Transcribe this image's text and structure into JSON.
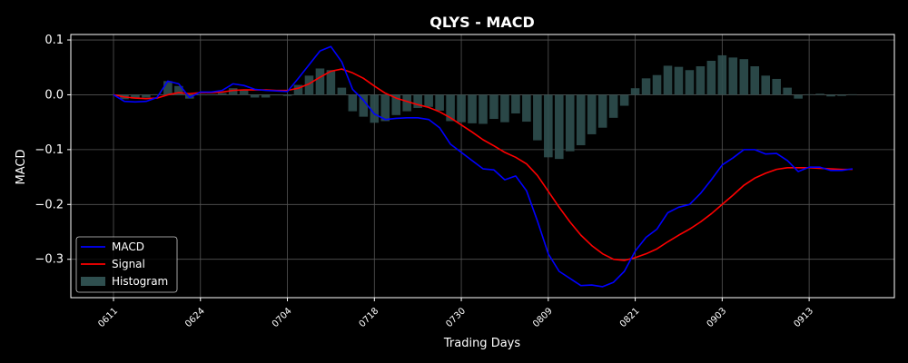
{
  "chart_data": {
    "type": "line",
    "title": "QLYS - MACD",
    "xlabel": "Trading Days",
    "ylabel": "MACD",
    "ylim": [
      -0.37,
      0.11
    ],
    "yticks": [
      0.1,
      0.0,
      -0.1,
      -0.2,
      -0.3
    ],
    "ytick_labels": [
      "0.1",
      "0.0",
      "−0.1",
      "−0.2",
      "−0.3"
    ],
    "xtick_labels": [
      "0611",
      "0624",
      "0704",
      "0718",
      "0730",
      "0809",
      "0821",
      "0903",
      "0913"
    ],
    "xtick_index": [
      0,
      8,
      16,
      24,
      32,
      40,
      48,
      56,
      64
    ],
    "grid": true,
    "legend_position": "lower-left",
    "colors": {
      "background": "#000000",
      "macd": "#0000ff",
      "signal": "#ff0000",
      "histogram": "#2f4f4f",
      "grid": "#555555",
      "axes": "#ffffff"
    },
    "series": [
      {
        "name": "MACD",
        "values": [
          0.0,
          -0.012,
          -0.013,
          -0.012,
          -0.005,
          0.025,
          0.02,
          -0.005,
          0.005,
          0.005,
          0.008,
          0.02,
          0.017,
          0.01,
          0.008,
          0.007,
          0.006,
          0.03,
          0.055,
          0.08,
          0.088,
          0.06,
          0.01,
          -0.01,
          -0.035,
          -0.045,
          -0.043,
          -0.042,
          -0.042,
          -0.045,
          -0.06,
          -0.09,
          -0.105,
          -0.12,
          -0.135,
          -0.137,
          -0.155,
          -0.148,
          -0.175,
          -0.23,
          -0.29,
          -0.322,
          -0.335,
          -0.348,
          -0.347,
          -0.35,
          -0.342,
          -0.322,
          -0.285,
          -0.26,
          -0.245,
          -0.215,
          -0.205,
          -0.2,
          -0.18,
          -0.155,
          -0.128,
          -0.115,
          -0.1,
          -0.1,
          -0.108,
          -0.107,
          -0.12,
          -0.14,
          -0.132,
          -0.132,
          -0.138,
          -0.138,
          -0.135
        ]
      },
      {
        "name": "Signal",
        "values": [
          0.0,
          -0.004,
          -0.006,
          -0.007,
          -0.006,
          0.0,
          0.004,
          0.002,
          0.004,
          0.004,
          0.005,
          0.008,
          0.009,
          0.009,
          0.009,
          0.008,
          0.008,
          0.012,
          0.02,
          0.032,
          0.043,
          0.047,
          0.04,
          0.03,
          0.016,
          0.003,
          -0.006,
          -0.012,
          -0.018,
          -0.023,
          -0.031,
          -0.042,
          -0.055,
          -0.068,
          -0.082,
          -0.093,
          -0.105,
          -0.114,
          -0.126,
          -0.147,
          -0.176,
          -0.205,
          -0.232,
          -0.256,
          -0.275,
          -0.29,
          -0.3,
          -0.302,
          -0.297,
          -0.29,
          -0.281,
          -0.268,
          -0.256,
          -0.245,
          -0.232,
          -0.217,
          -0.2,
          -0.183,
          -0.165,
          -0.152,
          -0.143,
          -0.136,
          -0.133,
          -0.133,
          -0.133,
          -0.134,
          -0.135,
          -0.136,
          -0.136
        ]
      },
      {
        "name": "Histogram",
        "values": [
          0.0,
          -0.008,
          -0.007,
          -0.005,
          0.001,
          0.025,
          0.016,
          -0.007,
          0.001,
          0.001,
          0.003,
          0.012,
          0.008,
          -0.005,
          -0.005,
          -0.001,
          -0.002,
          0.018,
          0.035,
          0.048,
          0.045,
          0.013,
          -0.03,
          -0.04,
          -0.051,
          -0.048,
          -0.037,
          -0.03,
          -0.024,
          -0.022,
          -0.029,
          -0.048,
          -0.05,
          -0.052,
          -0.053,
          -0.044,
          -0.05,
          -0.034,
          -0.049,
          -0.083,
          -0.114,
          -0.117,
          -0.103,
          -0.092,
          -0.072,
          -0.06,
          -0.042,
          -0.02,
          0.012,
          0.03,
          0.036,
          0.053,
          0.051,
          0.045,
          0.052,
          0.062,
          0.072,
          0.068,
          0.065,
          0.052,
          0.035,
          0.029,
          0.013,
          -0.007,
          0.001,
          0.002,
          -0.003,
          -0.002,
          0.001
        ]
      }
    ]
  }
}
